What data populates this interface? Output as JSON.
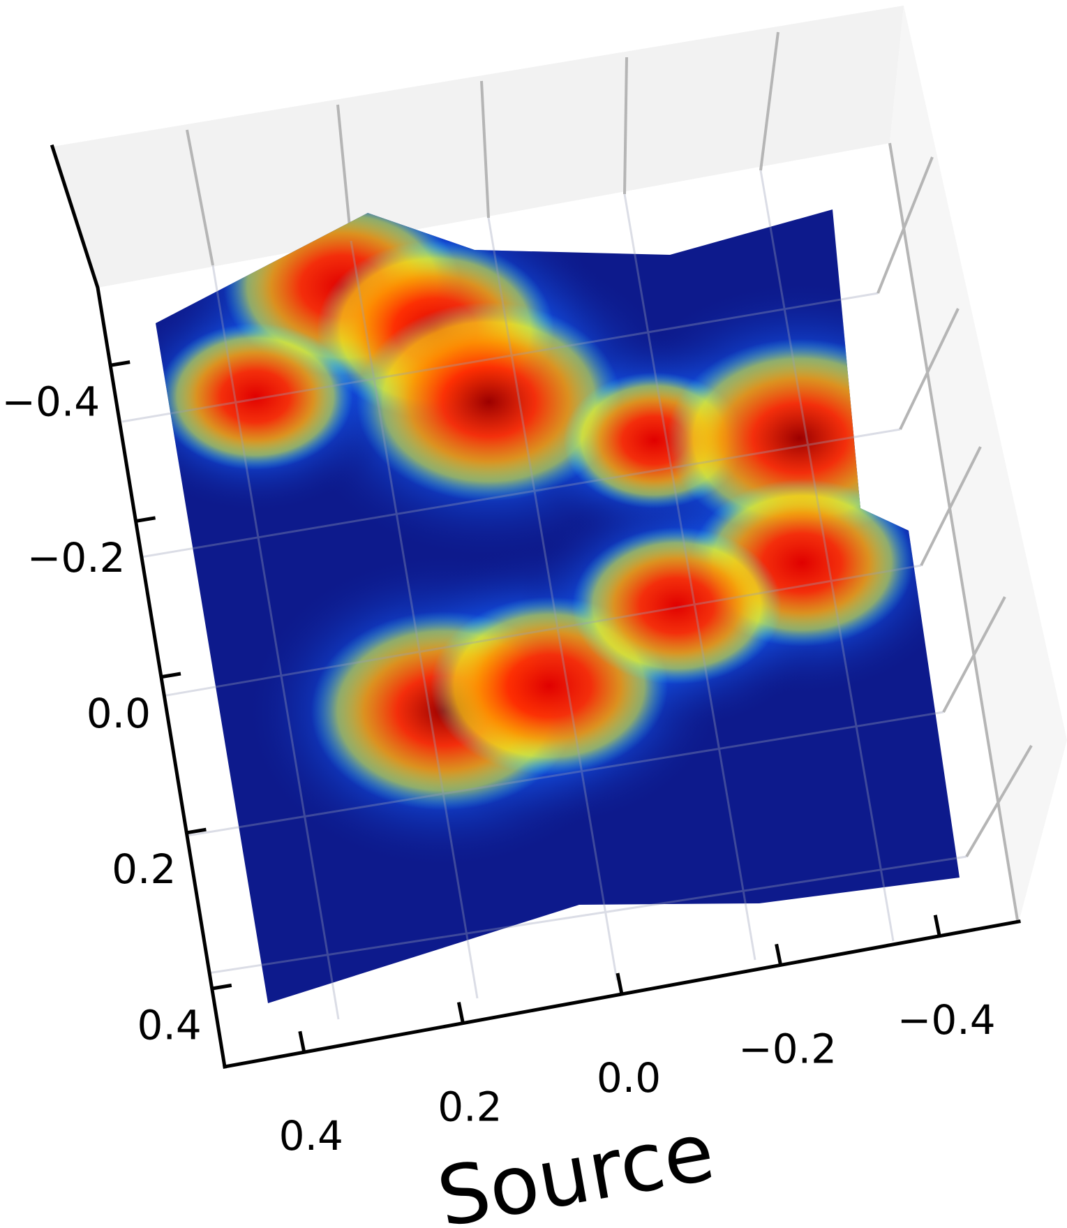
{
  "chart_data": {
    "type": "surface",
    "view": "3d-top-down-rotated",
    "colormap": "jet",
    "xlabel": "Source",
    "ylabel": "",
    "x_ticks": [
      0.4,
      0.2,
      0.0,
      -0.2,
      -0.4
    ],
    "x_tick_labels": [
      "0.4",
      "0.2",
      "0.0",
      "−0.2",
      "−0.4"
    ],
    "y_ticks": [
      -0.4,
      -0.2,
      0.0,
      0.2,
      0.4
    ],
    "y_tick_labels": [
      "−0.4",
      "−0.2",
      "0.0",
      "0.2",
      "0.4"
    ],
    "xlim": [
      -0.5,
      0.5
    ],
    "ylim": [
      -0.5,
      0.5
    ],
    "zlim": [
      0,
      1
    ],
    "grid": true,
    "peaks": [
      {
        "x": 0.26,
        "y": -0.46,
        "height": 0.85
      },
      {
        "x": 0.14,
        "y": -0.38,
        "height": 0.85
      },
      {
        "x": 0.08,
        "y": -0.27,
        "height": 0.95
      },
      {
        "x": 0.4,
        "y": -0.33,
        "height": 0.7
      },
      {
        "x": -0.14,
        "y": -0.18,
        "height": 0.65
      },
      {
        "x": -0.34,
        "y": -0.15,
        "height": 0.95
      },
      {
        "x": -0.32,
        "y": 0.02,
        "height": 0.8
      },
      {
        "x": 0.2,
        "y": 0.14,
        "height": 0.95
      },
      {
        "x": 0.05,
        "y": 0.13,
        "height": 0.85
      },
      {
        "x": -0.14,
        "y": 0.05,
        "height": 0.75
      }
    ]
  }
}
